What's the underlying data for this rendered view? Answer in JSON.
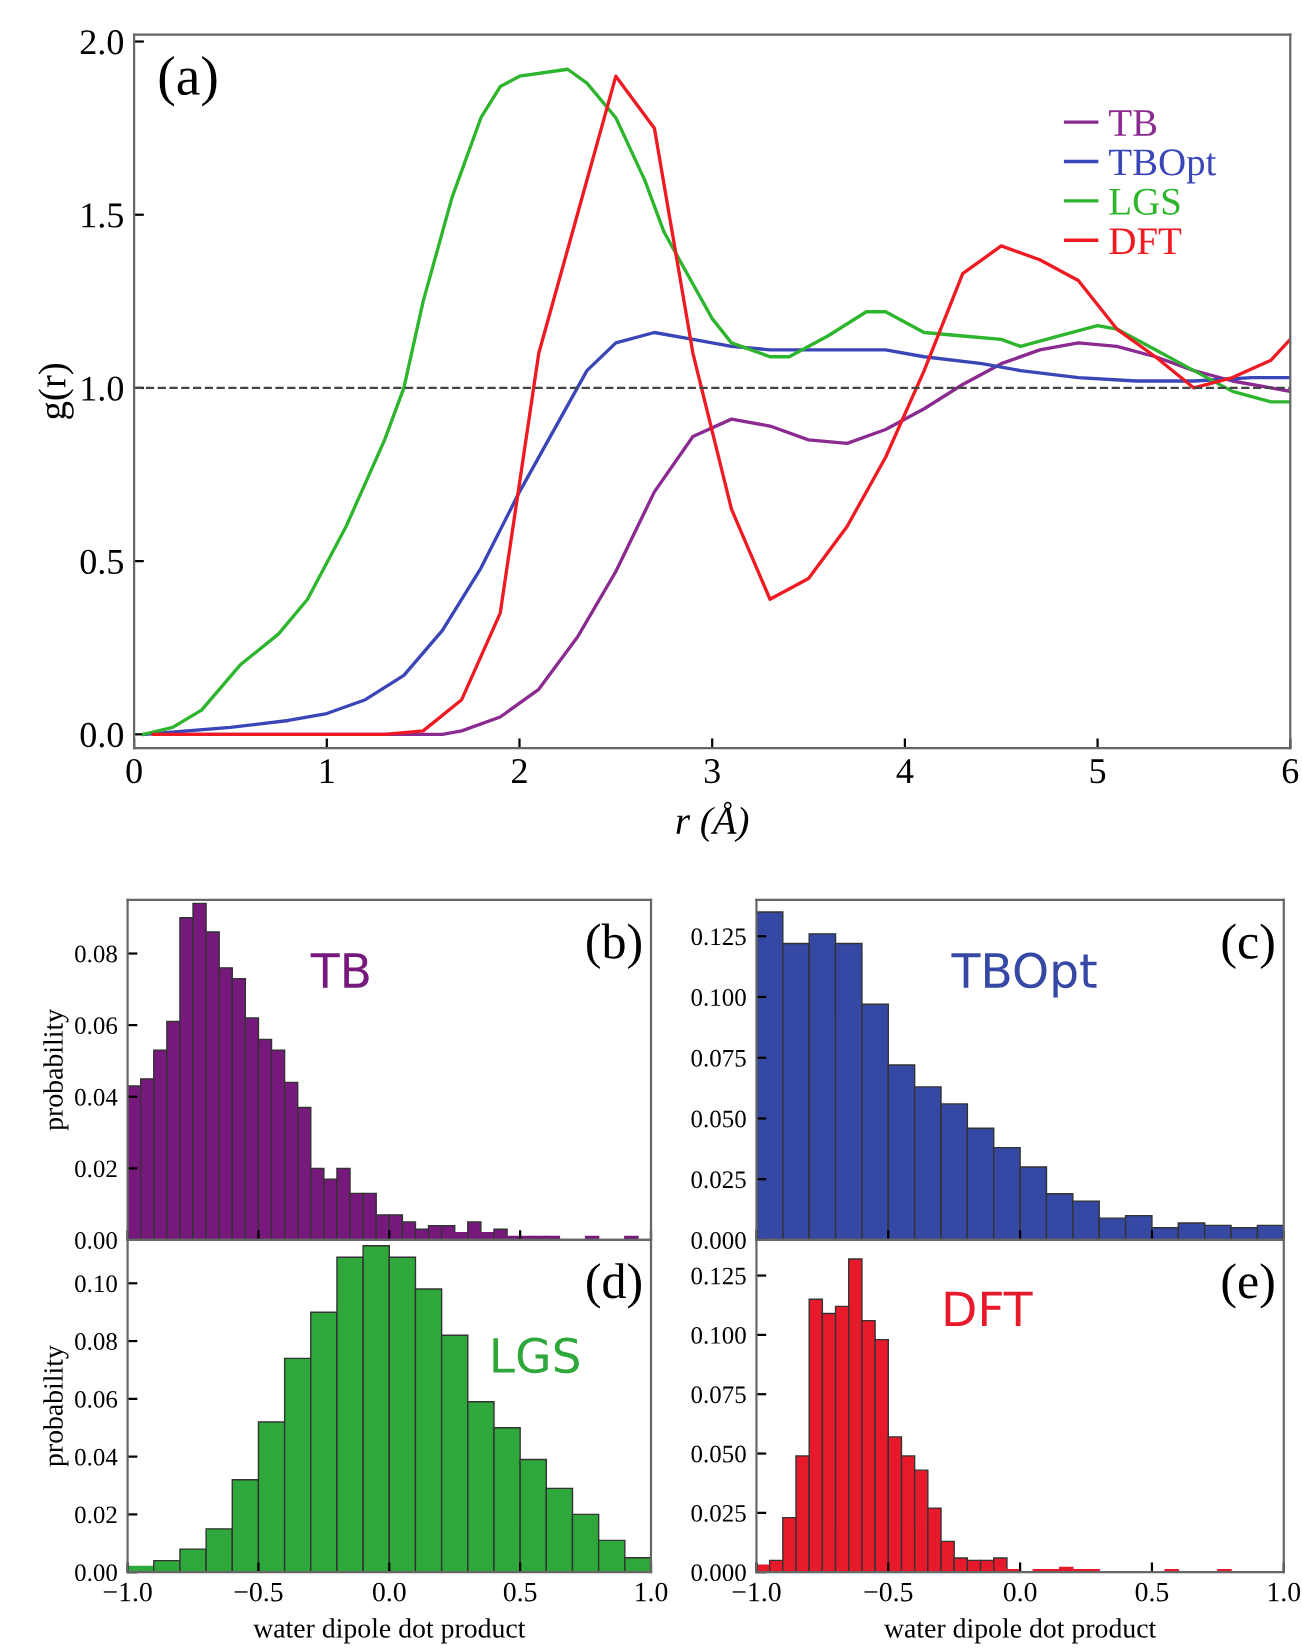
{
  "chart_data": [
    {
      "type": "line",
      "xlabel": "r (Å)",
      "ylabel": "g(r)",
      "xlim": [
        0,
        6
      ],
      "ylim": [
        -0.04,
        2.02
      ],
      "xticks": [
        0,
        1,
        2,
        3,
        4,
        5,
        6
      ],
      "yticks": [
        {
          "value": 0,
          "label": "0.0"
        },
        0.5,
        {
          "value": 1,
          "label": "1.0"
        },
        1.5,
        {
          "value": 2,
          "label": "2.0"
        }
      ],
      "legend": "top right",
      "annotations": [
        "(a)"
      ],
      "ref_lines": [
        {
          "axis": "y",
          "value": 1.0,
          "line_style": "dashed",
          "color": "#444444"
        }
      ],
      "series": [
        {
          "name": "TB",
          "color": "#8b2a90",
          "x": [
            0.1,
            1.6,
            1.7,
            1.9,
            2.1,
            2.3,
            2.5,
            2.7,
            2.9,
            3.1,
            3.3,
            3.5,
            3.7,
            3.9,
            4.1,
            4.3,
            4.5,
            4.7,
            4.9,
            5.1,
            5.3,
            5.5,
            5.7,
            5.9,
            6.0
          ],
          "values": [
            0,
            0,
            0.01,
            0.05,
            0.13,
            0.28,
            0.47,
            0.7,
            0.86,
            0.91,
            0.89,
            0.85,
            0.84,
            0.88,
            0.94,
            1.01,
            1.07,
            1.11,
            1.13,
            1.12,
            1.09,
            1.05,
            1.02,
            1.0,
            0.99
          ]
        },
        {
          "name": "TBOpt",
          "color": "#3a46b8",
          "x": [
            0.05,
            0.5,
            0.8,
            1.0,
            1.2,
            1.4,
            1.6,
            1.8,
            2.0,
            2.2,
            2.35,
            2.5,
            2.7,
            2.9,
            3.1,
            3.3,
            3.6,
            3.9,
            4.1,
            4.4,
            4.6,
            4.9,
            5.2,
            5.5,
            5.8,
            6.0
          ],
          "values": [
            0,
            0.02,
            0.04,
            0.06,
            0.1,
            0.17,
            0.3,
            0.48,
            0.7,
            0.9,
            1.05,
            1.13,
            1.16,
            1.14,
            1.12,
            1.11,
            1.11,
            1.11,
            1.09,
            1.07,
            1.05,
            1.03,
            1.02,
            1.02,
            1.03,
            1.03
          ]
        },
        {
          "name": "LGS",
          "color": "#2db52d",
          "x": [
            0.05,
            0.2,
            0.35,
            0.55,
            0.75,
            0.9,
            1.1,
            1.3,
            1.4,
            1.5,
            1.65,
            1.8,
            1.9,
            2.0,
            2.25,
            2.35,
            2.5,
            2.65,
            2.75,
            2.9,
            3.0,
            3.1,
            3.3,
            3.4,
            3.6,
            3.8,
            3.9,
            4.1,
            4.3,
            4.5,
            4.6,
            4.8,
            5.0,
            5.1,
            5.3,
            5.5,
            5.7,
            5.9,
            6.0
          ],
          "values": [
            0,
            0.02,
            0.07,
            0.2,
            0.29,
            0.39,
            0.6,
            0.85,
            1.0,
            1.25,
            1.55,
            1.78,
            1.87,
            1.9,
            1.92,
            1.88,
            1.78,
            1.6,
            1.45,
            1.3,
            1.2,
            1.13,
            1.09,
            1.09,
            1.15,
            1.22,
            1.22,
            1.16,
            1.15,
            1.14,
            1.12,
            1.15,
            1.18,
            1.17,
            1.11,
            1.05,
            0.99,
            0.96,
            0.96
          ]
        },
        {
          "name": "DFT",
          "color": "#f01a22",
          "x": [
            0.1,
            1.3,
            1.5,
            1.7,
            1.9,
            2.1,
            2.3,
            2.5,
            2.7,
            2.9,
            3.1,
            3.3,
            3.5,
            3.7,
            3.9,
            4.1,
            4.3,
            4.5,
            4.7,
            4.9,
            5.1,
            5.3,
            5.5,
            5.7,
            5.9,
            6.0
          ],
          "values": [
            0,
            0,
            0.01,
            0.1,
            0.35,
            1.1,
            1.5,
            1.9,
            1.75,
            1.1,
            0.65,
            0.39,
            0.45,
            0.6,
            0.8,
            1.05,
            1.33,
            1.41,
            1.37,
            1.31,
            1.17,
            1.09,
            1.0,
            1.03,
            1.08,
            1.14
          ]
        }
      ]
    },
    {
      "type": "histogram",
      "ylabel": "probability",
      "xlim": [
        -1,
        1
      ],
      "ylim": [
        0,
        0.095
      ],
      "xticks": [
        -1,
        -0.5,
        0,
        0.5,
        1
      ],
      "yticks": [
        {
          "value": 0,
          "label": "0.00"
        },
        {
          "value": 0.02,
          "label": "0.02"
        },
        {
          "value": 0.04,
          "label": "0.04"
        },
        {
          "value": 0.06,
          "label": "0.06"
        },
        {
          "value": 0.08,
          "label": "0.08"
        }
      ],
      "tick_labels": "y",
      "annotations": [
        "(b)"
      ],
      "bins": [
        -1,
        -0.95,
        -0.9,
        -0.85,
        -0.8,
        -0.75,
        -0.7,
        -0.65,
        -0.6,
        -0.55,
        -0.5,
        -0.45,
        -0.4,
        -0.35,
        -0.3,
        -0.25,
        -0.2,
        -0.15,
        -0.1,
        -0.05,
        0,
        0.05,
        0.1,
        0.15,
        0.2,
        0.25,
        0.3,
        0.35,
        0.4,
        0.45,
        0.5,
        0.55,
        0.6,
        0.65,
        0.7,
        0.75,
        0.8,
        0.85,
        0.9,
        0.95,
        1
      ],
      "series": [
        {
          "name": "TB",
          "color": "#77197c",
          "values": [
            0.043,
            0.045,
            0.053,
            0.061,
            0.09,
            0.094,
            0.086,
            0.076,
            0.073,
            0.062,
            0.056,
            0.053,
            0.044,
            0.037,
            0.02,
            0.017,
            0.02,
            0.013,
            0.013,
            0.007,
            0.007,
            0.005,
            0.003,
            0.004,
            0.004,
            0.002,
            0.005,
            0.002,
            0.003,
            0.001,
            0.001,
            0.001,
            0.001,
            0,
            0,
            0.001,
            0,
            0,
            0.001,
            0
          ]
        }
      ]
    },
    {
      "type": "histogram",
      "xlim": [
        -1,
        1
      ],
      "ylim": [
        0,
        0.14
      ],
      "xticks": [
        -1,
        -0.5,
        0,
        0.5,
        1
      ],
      "yticks": [
        {
          "value": 0,
          "label": "0.000"
        },
        {
          "value": 0.025,
          "label": "0.025"
        },
        {
          "value": 0.05,
          "label": "0.050"
        },
        {
          "value": 0.075,
          "label": "0.075"
        },
        {
          "value": 0.1,
          "label": "0.100"
        },
        {
          "value": 0.125,
          "label": "0.125"
        }
      ],
      "tick_labels": "y",
      "annotations": [
        "(c)"
      ],
      "bins": [
        -1,
        -0.9,
        -0.8,
        -0.7,
        -0.6,
        -0.5,
        -0.4,
        -0.3,
        -0.2,
        -0.1,
        0,
        0.1,
        0.2,
        0.3,
        0.4,
        0.5,
        0.6,
        0.7,
        0.8,
        0.9,
        1
      ],
      "series": [
        {
          "name": "TBOpt",
          "color": "#3448a4",
          "values": [
            0.135,
            0.122,
            0.126,
            0.122,
            0.097,
            0.072,
            0.063,
            0.056,
            0.046,
            0.038,
            0.03,
            0.019,
            0.016,
            0.009,
            0.01,
            0.005,
            0.007,
            0.006,
            0.005,
            0.006
          ]
        }
      ]
    },
    {
      "type": "histogram",
      "ylabel": "probability",
      "xlabel": "water dipole dot product",
      "xlim": [
        -1,
        1
      ],
      "ylim": [
        0,
        0.115
      ],
      "xticks": [
        {
          "value": -1,
          "label": "−1.0"
        },
        {
          "value": -0.5,
          "label": "−0.5"
        },
        {
          "value": 0,
          "label": "0.0"
        },
        {
          "value": 0.5,
          "label": "0.5"
        },
        {
          "value": 1,
          "label": "1.0"
        }
      ],
      "yticks": [
        {
          "value": 0,
          "label": "0.00"
        },
        {
          "value": 0.02,
          "label": "0.02"
        },
        {
          "value": 0.04,
          "label": "0.04"
        },
        {
          "value": 0.06,
          "label": "0.06"
        },
        {
          "value": 0.08,
          "label": "0.08"
        },
        {
          "value": 0.1,
          "label": "0.10"
        }
      ],
      "annotations": [
        "(d)"
      ],
      "bins": [
        -1,
        -0.9,
        -0.8,
        -0.7,
        -0.6,
        -0.5,
        -0.4,
        -0.3,
        -0.2,
        -0.1,
        0,
        0.1,
        0.2,
        0.3,
        0.4,
        0.5,
        0.6,
        0.7,
        0.8,
        0.9,
        1
      ],
      "series": [
        {
          "name": "LGS",
          "color": "#2ea83a",
          "values": [
            0.002,
            0.004,
            0.008,
            0.015,
            0.032,
            0.052,
            0.074,
            0.09,
            0.109,
            0.113,
            0.109,
            0.098,
            0.082,
            0.059,
            0.05,
            0.039,
            0.029,
            0.02,
            0.011,
            0.005
          ]
        }
      ]
    },
    {
      "type": "histogram",
      "xlabel": "water dipole dot product",
      "xlim": [
        -1,
        1
      ],
      "ylim": [
        0,
        0.14
      ],
      "xticks": [
        {
          "value": -1,
          "label": "−1.0"
        },
        {
          "value": -0.5,
          "label": "−0.5"
        },
        {
          "value": 0,
          "label": "0.0"
        },
        {
          "value": 0.5,
          "label": "0.5"
        },
        {
          "value": 1,
          "label": "1.0"
        }
      ],
      "yticks": [
        {
          "value": 0,
          "label": "0.000"
        },
        {
          "value": 0.025,
          "label": "0.025"
        },
        {
          "value": 0.05,
          "label": "0.050"
        },
        {
          "value": 0.075,
          "label": "0.075"
        },
        {
          "value": 0.1,
          "label": "0.100"
        },
        {
          "value": 0.125,
          "label": "0.125"
        }
      ],
      "annotations": [
        "(e)"
      ],
      "bins": [
        -1,
        -0.95,
        -0.9,
        -0.85,
        -0.8,
        -0.75,
        -0.7,
        -0.65,
        -0.6,
        -0.55,
        -0.5,
        -0.45,
        -0.4,
        -0.35,
        -0.3,
        -0.25,
        -0.2,
        -0.15,
        -0.1,
        -0.05,
        0,
        0.05,
        0.1,
        0.15,
        0.2,
        0.25,
        0.3,
        0.35,
        0.4,
        0.45,
        0.5,
        0.55,
        0.6,
        0.65,
        0.7,
        0.75,
        0.8,
        0.85,
        0.9,
        0.95,
        1
      ],
      "series": [
        {
          "name": "DFT",
          "color": "#e8192b",
          "values": [
            0.003,
            0.005,
            0.023,
            0.049,
            0.115,
            0.109,
            0.112,
            0.132,
            0.106,
            0.098,
            0.057,
            0.049,
            0.043,
            0.027,
            0.013,
            0.006,
            0.005,
            0.005,
            0.006,
            0.001,
            0,
            0.001,
            0.001,
            0.002,
            0.001,
            0.001,
            0,
            0,
            0,
            0,
            0,
            0.001,
            0,
            0,
            0,
            0.001,
            0,
            0,
            0,
            0
          ]
        }
      ]
    }
  ]
}
